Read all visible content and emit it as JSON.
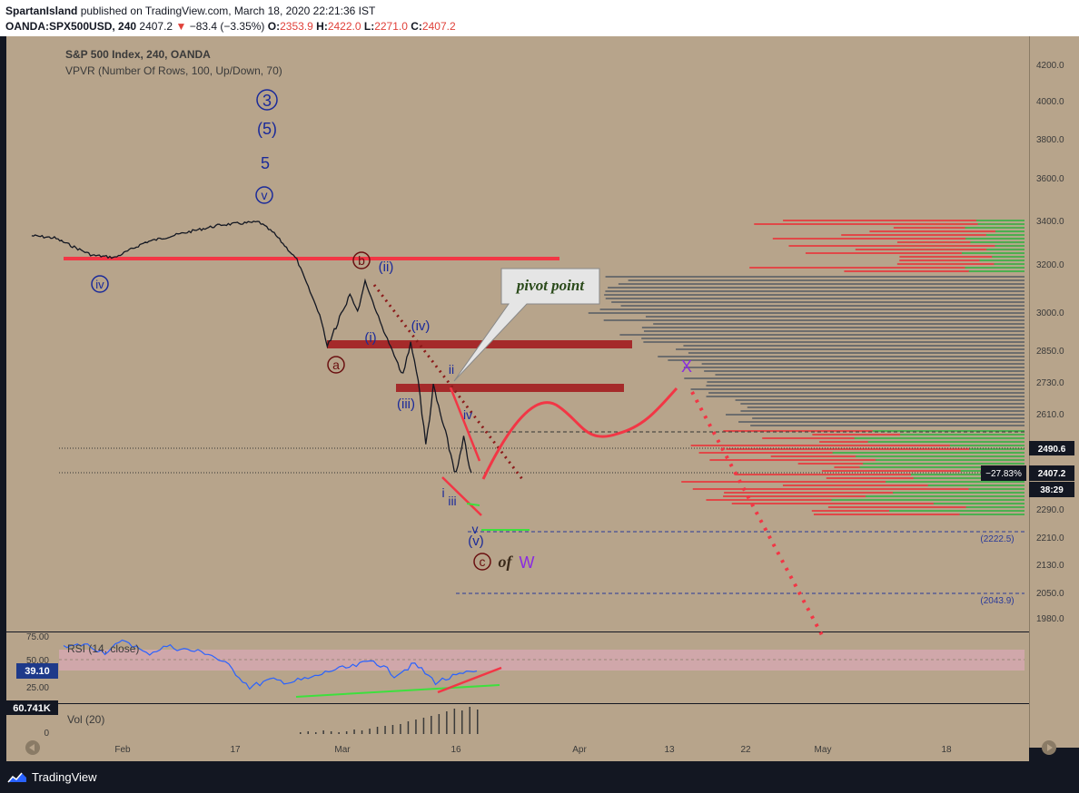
{
  "header": {
    "author": "SpartanIsland",
    "published": "published on TradingView.com, March 18, 2020 22:21:36 IST",
    "symbol": "OANDA:SPX500USD, 240",
    "last": "2407.2",
    "change_arrow": "▼",
    "change": "−83.4 (−3.35%)",
    "o_label": "O:",
    "o_val": "2353.9",
    "h_label": "H:",
    "h_val": "2422.0",
    "l_label": "L:",
    "l_val": "2271.0",
    "c_label": "C:",
    "c_val": "2407.2"
  },
  "chart_data": {
    "type": "line",
    "title": "S&P 500 Index, 240, OANDA",
    "subtitle": "VPVR (Number Of Rows, 100, Up/Down, 70)",
    "price_axis_ticks": [
      "4200.0",
      "4000.0",
      "3800.0",
      "3600.0",
      "3400.0",
      "3200.0",
      "3000.0",
      "2850.0",
      "2730.0",
      "2610.0",
      "2490.6",
      "2407.2",
      "2290.0",
      "2210.0",
      "2130.0",
      "2050.0",
      "1980.0"
    ],
    "time_axis_ticks": [
      "Feb",
      "17",
      "Mar",
      "16",
      "Apr",
      "13",
      "22",
      "May",
      "18"
    ],
    "price_path": [
      [
        "Jan 20",
        3330
      ],
      [
        "Jan 23",
        3320
      ],
      [
        "Jan 28",
        3240
      ],
      [
        "Jan 31",
        3230
      ],
      [
        "Feb 4",
        3300
      ],
      [
        "Feb 10",
        3350
      ],
      [
        "Feb 14",
        3380
      ],
      [
        "Feb 19",
        3393
      ],
      [
        "Feb 21",
        3340
      ],
      [
        "Feb 24",
        3220
      ],
      [
        "Feb 25",
        3140
      ],
      [
        "Feb 27",
        2990
      ],
      [
        "Feb 28",
        2870
      ],
      [
        "Mar 2",
        3080
      ],
      [
        "Mar 3",
        3000
      ],
      [
        "Mar 4",
        3130
      ],
      [
        "Mar 6",
        2960
      ],
      [
        "Mar 9",
        2750
      ],
      [
        "Mar 10",
        2880
      ],
      [
        "Mar 11",
        2740
      ],
      [
        "Mar 12",
        2500
      ],
      [
        "Mar 13",
        2710
      ],
      [
        "Mar 16",
        2400
      ],
      [
        "Mar 17",
        2520
      ],
      [
        "Mar 18",
        2407.2
      ]
    ],
    "last_price": "2407.2",
    "last_change_pct": "−27.83%",
    "prev_close_marker": "2490.6",
    "countdown": "38:29",
    "levels": [
      "(2222.5)",
      "(2043.9)"
    ],
    "wave_labels": [
      "3",
      "(5)",
      "5",
      "v",
      "iv",
      "b",
      "(ii)",
      "(i)",
      "(iv)",
      "a",
      "(iii)",
      "ii",
      "iv",
      "i",
      "iii",
      "v",
      "(v)",
      "c",
      "X"
    ],
    "annotations": [
      "pivot point",
      "of",
      "W"
    ],
    "rsi": {
      "label": "RSI (14, close)",
      "value": "39.10",
      "ticks": [
        "75.00",
        "50.00",
        "25.00"
      ],
      "path": [
        62,
        66,
        58,
        70,
        56,
        64,
        60,
        57,
        44,
        23,
        30,
        28,
        32,
        40,
        43,
        50,
        35,
        46,
        28,
        34,
        39.1
      ]
    },
    "volume": {
      "label": "Vol (20)",
      "value": "60.741K",
      "ticks": [
        "0"
      ],
      "bars": [
        2,
        3,
        2,
        4,
        3,
        2,
        3,
        5,
        4,
        6,
        8,
        9,
        10,
        11,
        14,
        16,
        18,
        20,
        22,
        25,
        28,
        26,
        30,
        27
      ]
    },
    "colors": {
      "background": "#b7a48b",
      "price": "#131722",
      "support": "#f23645",
      "box": "#a52a2a",
      "wave_blue": "#1a2a9a",
      "wave_purple": "#8a2be2",
      "rsi": "#2962ff",
      "rsi_band": "#d8a8b4",
      "vpvr_up": "#4caf50",
      "vpvr_down": "#e04848",
      "vpvr_gray": "#6d6d6d",
      "green_line": "#3de03d"
    }
  },
  "footer": {
    "brand": "TradingView"
  }
}
